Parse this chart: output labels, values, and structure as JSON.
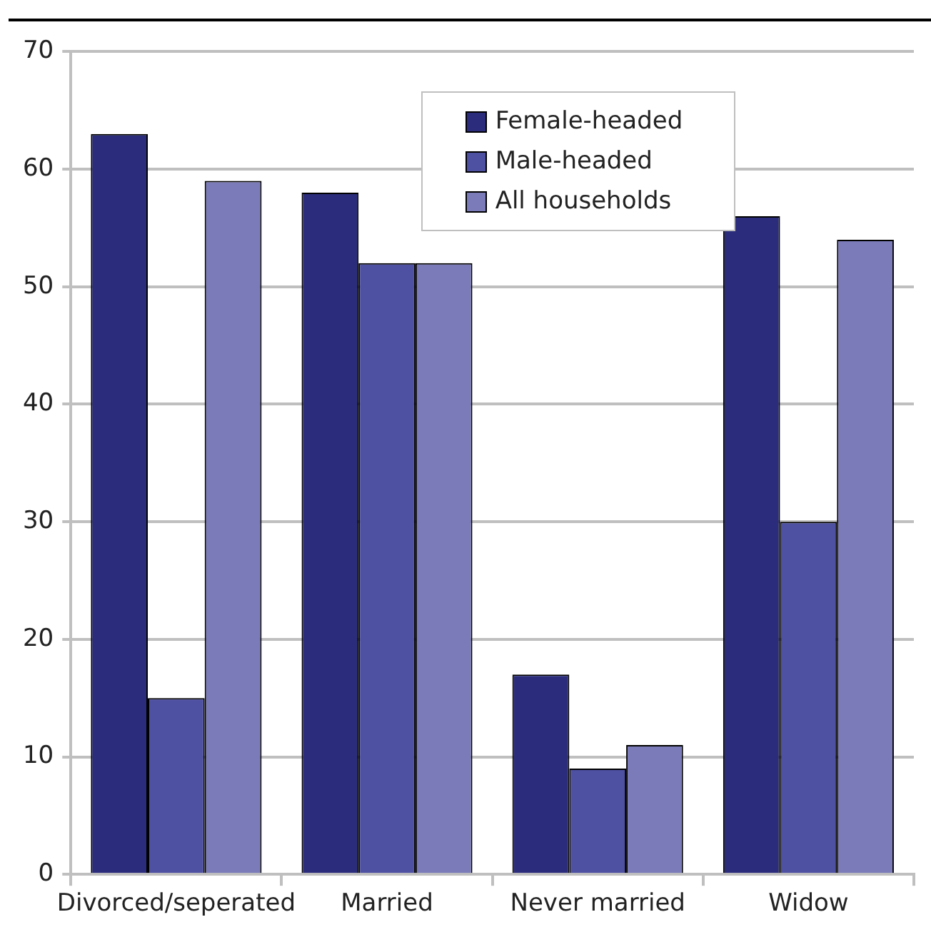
{
  "chart_data": {
    "type": "bar",
    "categories": [
      "Divorced/seperated",
      "Married",
      "Never married",
      "Widow"
    ],
    "series": [
      {
        "name": "Female-headed",
        "color": "#2b2d7c",
        "values": [
          63,
          58,
          17,
          56
        ]
      },
      {
        "name": "Male-headed",
        "color": "#4e50a2",
        "values": [
          15,
          52,
          9,
          30
        ]
      },
      {
        "name": "All households",
        "color": "#7b7bba",
        "values": [
          59,
          52,
          11,
          54
        ]
      }
    ],
    "ylim": [
      0,
      70
    ],
    "yticks": [
      0,
      10,
      20,
      30,
      40,
      50,
      60,
      70
    ],
    "grid": "y",
    "legend": "top"
  }
}
